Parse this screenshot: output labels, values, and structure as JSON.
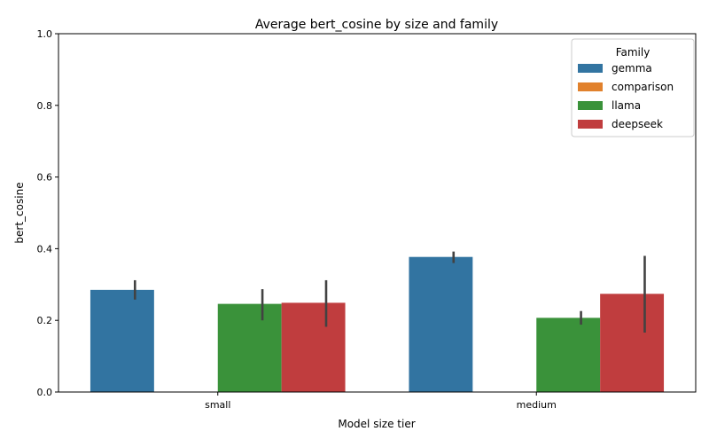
{
  "chart_data": {
    "type": "bar",
    "title": "Average bert_cosine by size and family",
    "xlabel": "Model size tier",
    "ylabel": "bert_cosine",
    "categories": [
      "small",
      "medium"
    ],
    "ylim": [
      0,
      1.0
    ],
    "yticks": [
      "0.0",
      "0.2",
      "0.4",
      "0.6",
      "0.8",
      "1.0"
    ],
    "grid": false,
    "legend": {
      "title": "Family",
      "placement": "top-right"
    },
    "series": [
      {
        "name": "gemma",
        "color": "#3274a1",
        "values": [
          0.285,
          0.377
        ],
        "ci": [
          [
            0.258,
            0.312
          ],
          [
            0.36,
            0.392
          ]
        ]
      },
      {
        "name": "comparison",
        "color": "#e1812c",
        "values": [
          null,
          null
        ],
        "ci": [
          null,
          null
        ]
      },
      {
        "name": "llama",
        "color": "#3a923a",
        "values": [
          0.246,
          0.207
        ],
        "ci": [
          [
            0.2,
            0.287
          ],
          [
            0.188,
            0.226
          ]
        ]
      },
      {
        "name": "deepseek",
        "color": "#c03d3e",
        "values": [
          0.249,
          0.274
        ],
        "ci": [
          [
            0.182,
            0.312
          ],
          [
            0.166,
            0.38
          ]
        ]
      }
    ]
  }
}
